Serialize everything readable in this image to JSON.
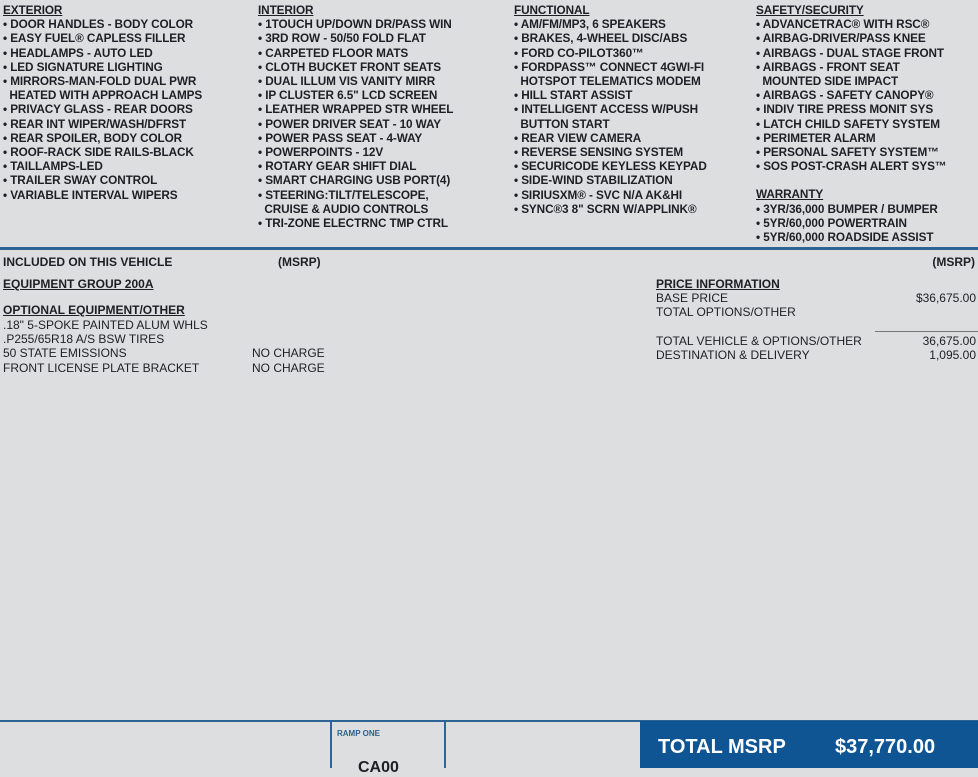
{
  "features": [
    {
      "title": "EXTERIOR",
      "items": [
        "• DOOR HANDLES - BODY COLOR",
        "• EASY FUEL® CAPLESS FILLER",
        "• HEADLAMPS - AUTO LED",
        "• LED SIGNATURE LIGHTING",
        "• MIRRORS-MAN-FOLD DUAL PWR",
        "  HEATED WITH APPROACH LAMPS",
        "• PRIVACY GLASS - REAR DOORS",
        "• REAR INT WIPER/WASH/DFRST",
        "• REAR SPOILER, BODY COLOR",
        "• ROOF-RACK SIDE RAILS-BLACK",
        "• TAILLAMPS-LED",
        "• TRAILER SWAY CONTROL",
        "• VARIABLE INTERVAL WIPERS"
      ]
    },
    {
      "title": "INTERIOR",
      "items": [
        "• 1TOUCH UP/DOWN DR/PASS WIN",
        "• 3RD ROW - 50/50 FOLD FLAT",
        "• CARPETED FLOOR MATS",
        "• CLOTH BUCKET FRONT SEATS",
        "• DUAL ILLUM VIS VANITY MIRR",
        "• IP CLUSTER 6.5\" LCD SCREEN",
        "• LEATHER WRAPPED STR WHEEL",
        "• POWER DRIVER SEAT - 10 WAY",
        "• POWER PASS SEAT - 4-WAY",
        "• POWERPOINTS - 12V",
        "• ROTARY GEAR SHIFT DIAL",
        "• SMART CHARGING USB PORT(4)",
        "• STEERING:TILT/TELESCOPE,",
        "  CRUISE & AUDIO CONTROLS",
        "• TRI-ZONE ELECTRNC TMP CTRL"
      ]
    },
    {
      "title": "FUNCTIONAL",
      "items": [
        "• AM/FM/MP3, 6 SPEAKERS",
        "• BRAKES, 4-WHEEL DISC/ABS",
        "• FORD CO-PILOT360™",
        "• FORDPASS™ CONNECT 4GWI-FI",
        "  HOTSPOT TELEMATICS MODEM",
        "• HILL START ASSIST",
        "• INTELLIGENT ACCESS W/PUSH",
        "  BUTTON START",
        "• REAR VIEW CAMERA",
        "• REVERSE SENSING SYSTEM",
        "• SECURICODE KEYLESS KEYPAD",
        "• SIDE-WIND STABILIZATION",
        "• SIRIUSXM® - SVC N/A AK&HI",
        "• SYNC®3 8\" SCRN W/APPLINK®"
      ]
    },
    {
      "title": "SAFETY/SECURITY",
      "items": [
        "• ADVANCETRAC® WITH RSC®",
        "• AIRBAG-DRIVER/PASS KNEE",
        "• AIRBAGS - DUAL STAGE FRONT",
        "• AIRBAGS - FRONT SEAT",
        "  MOUNTED SIDE IMPACT",
        "• AIRBAGS - SAFETY CANOPY®",
        "• INDIV TIRE PRESS MONIT SYS",
        "• LATCH CHILD SAFETY SYSTEM",
        "• PERIMETER ALARM",
        "• PERSONAL SAFETY SYSTEM™",
        "• SOS POST-CRASH ALERT SYS™"
      ]
    }
  ],
  "warranty": {
    "title": "WARRANTY",
    "items": [
      "• 3YR/36,000 BUMPER / BUMPER",
      "• 5YR/60,000 POWERTRAIN",
      "• 5YR/60,000 ROADSIDE ASSIST"
    ]
  },
  "included": {
    "title": "INCLUDED ON THIS VEHICLE",
    "msrp": "(MSRP)",
    "group": "EQUIPMENT GROUP 200A",
    "optional_title": "OPTIONAL EQUIPMENT/OTHER",
    "optional": [
      {
        "name": ".18\" 5-SPOKE PAINTED ALUM WHLS",
        "price": ""
      },
      {
        "name": ".P255/65R18 A/S BSW TIRES",
        "price": ""
      },
      {
        "name": "50 STATE EMISSIONS",
        "price": "NO CHARGE"
      },
      {
        "name": "FRONT LICENSE PLATE BRACKET",
        "price": "NO CHARGE"
      }
    ]
  },
  "price": {
    "msrp": "(MSRP)",
    "title": "PRICE INFORMATION",
    "base_label": "BASE PRICE",
    "base": "$36,675.00",
    "options_label": "TOTAL OPTIONS/OTHER",
    "total_label": "TOTAL VEHICLE & OPTIONS/OTHER",
    "total": "36,675.00",
    "dest_label": "DESTINATION & DELIVERY",
    "dest": "1,095.00"
  },
  "footer": {
    "ramp": "RAMP ONE",
    "code": "CA00",
    "total_label": "TOTAL MSRP",
    "total": "$37,770.00"
  },
  "colors": {
    "accent": "#0f5593",
    "background": "#dcdee0"
  }
}
